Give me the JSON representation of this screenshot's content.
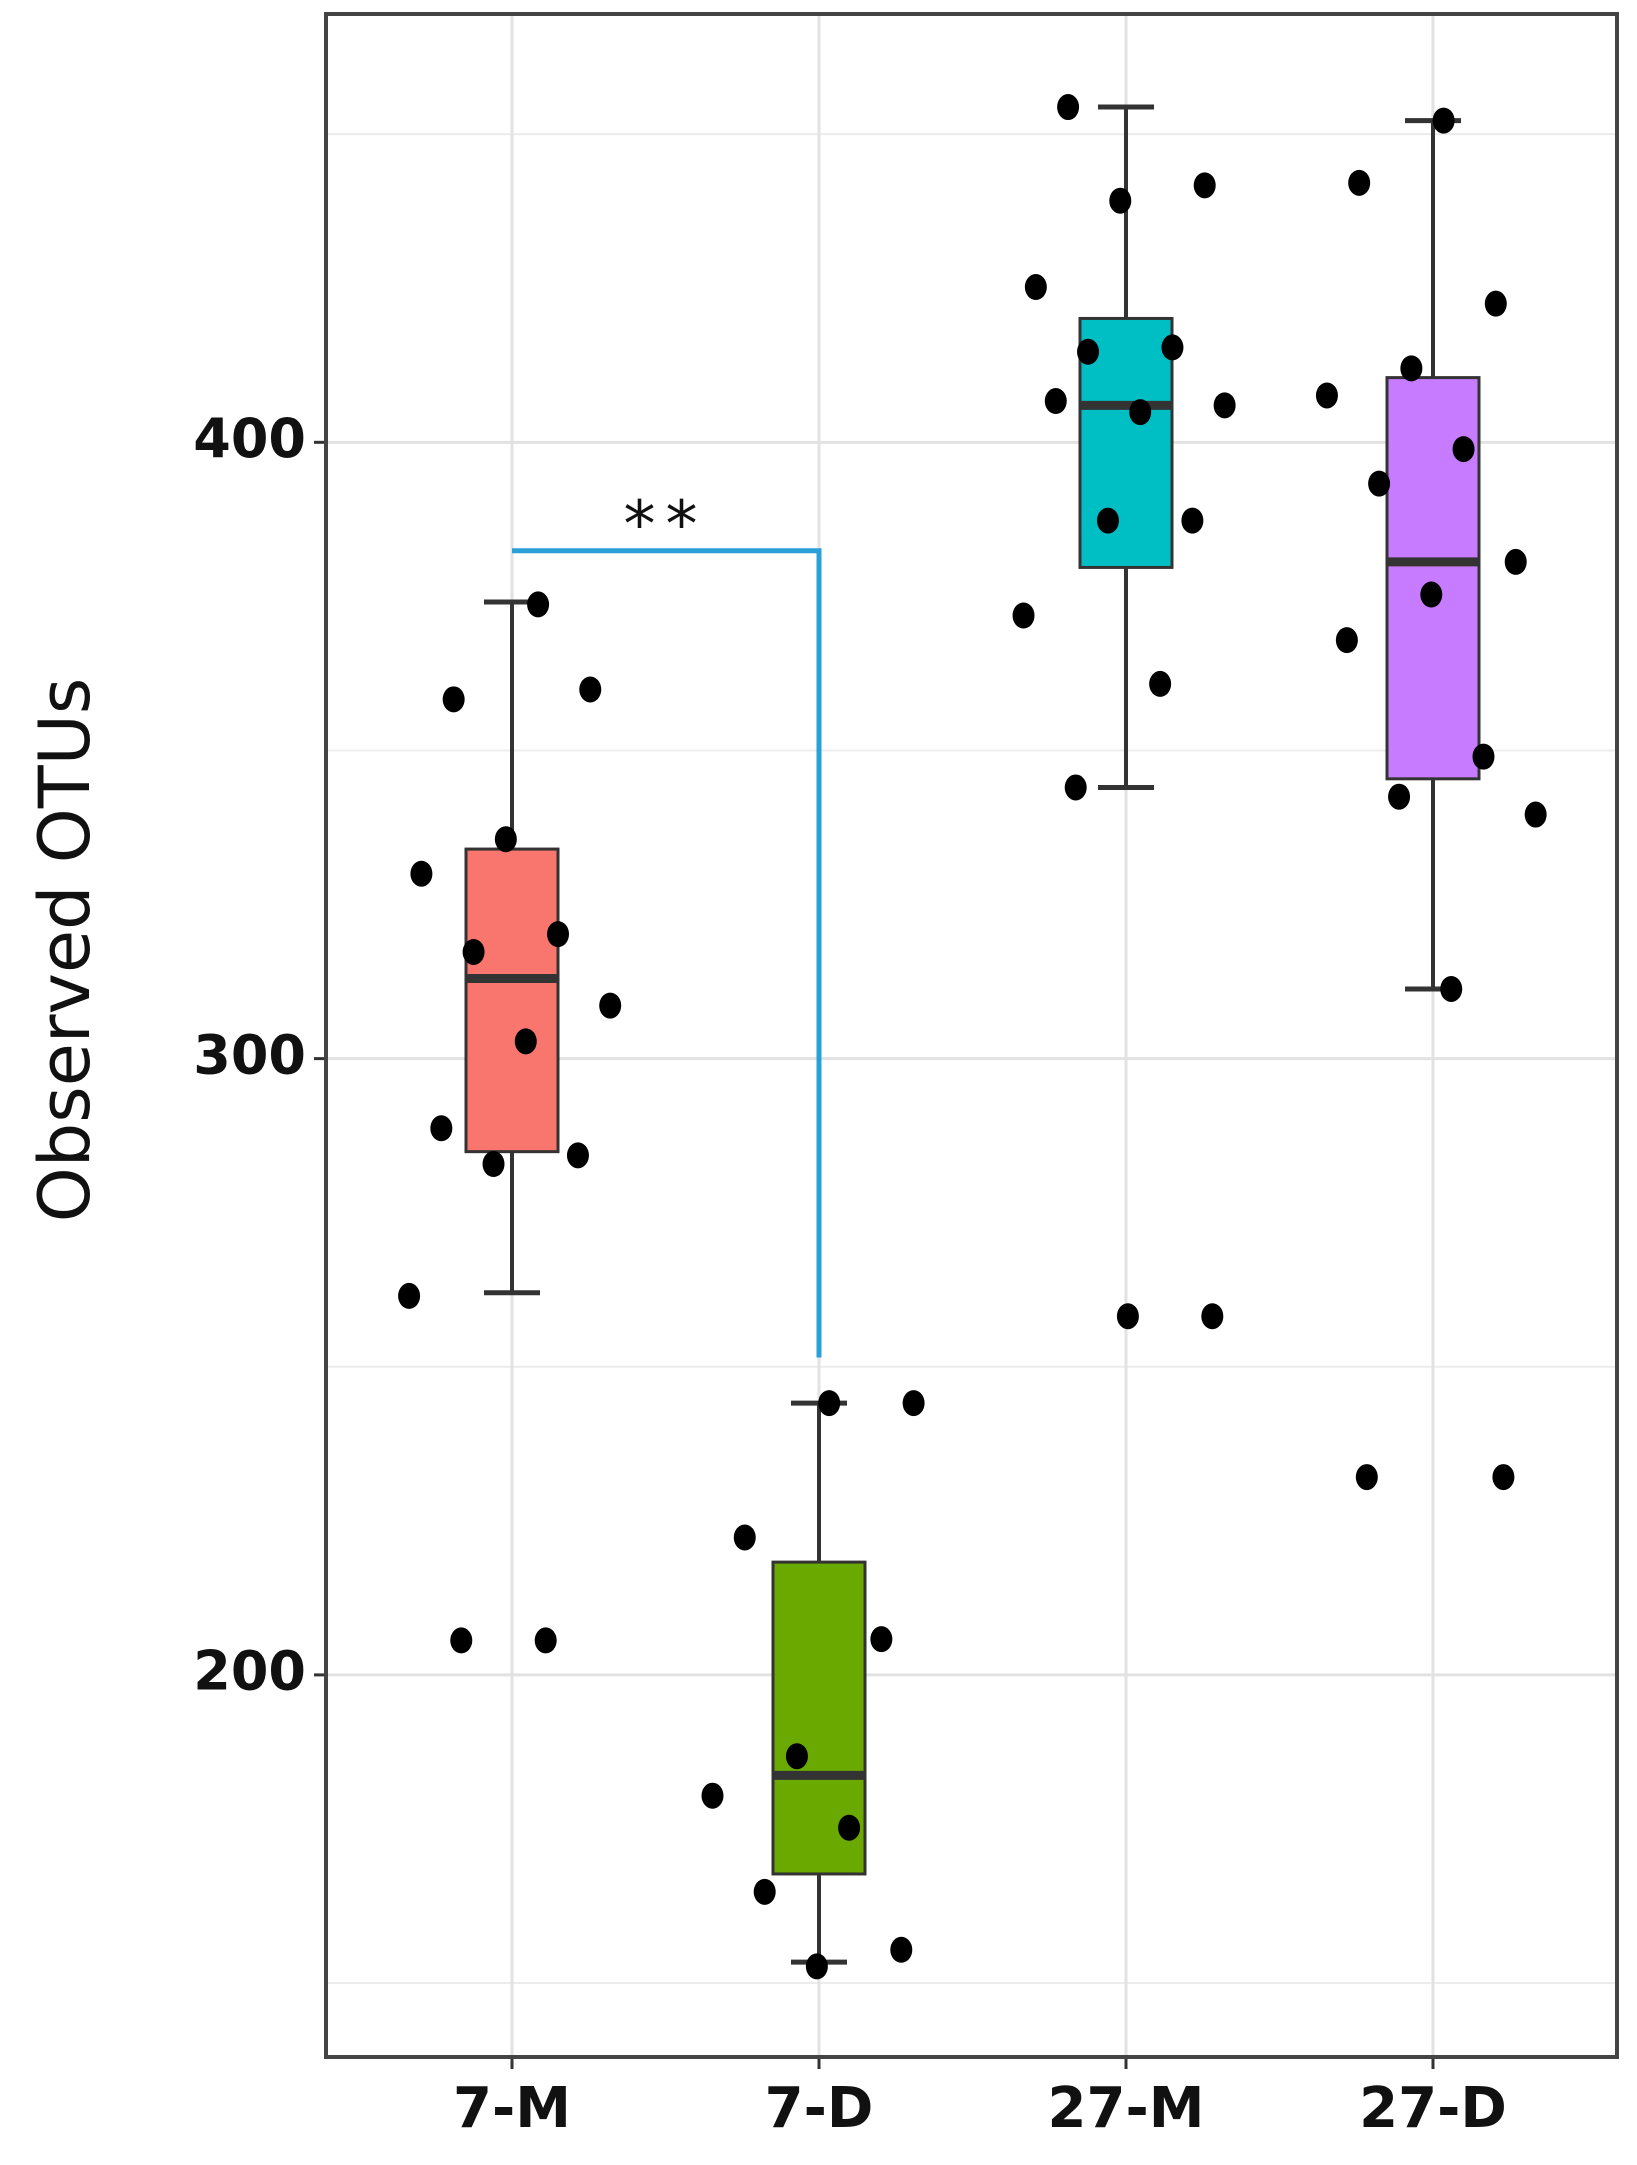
{
  "chart_data": {
    "type": "box",
    "y_label": "Observed OTUs",
    "categories": [
      "7-M",
      "7-D",
      "27-M",
      "27-D"
    ],
    "ylim": [
      138,
      469.5
    ],
    "yticks": [
      200,
      300,
      400
    ],
    "minor_yticks": [
      150,
      250,
      350,
      450
    ],
    "grid": true,
    "boxes": [
      {
        "color": "#f8766d",
        "whisker_low": 262.0,
        "q1": 284.9,
        "median": 313.0,
        "q3": 334.0,
        "whisker_high": 374.1,
        "points": [
          373.7,
          358.3,
          359.9,
          335.6,
          330.0,
          320.2,
          317.3,
          308.6,
          302.8,
          288.7,
          284.3,
          282.9,
          261.5,
          205.6,
          205.6
        ]
      },
      {
        "color": "#6aaa00",
        "whisker_low": 153.4,
        "q1": 167.7,
        "median": 183.7,
        "q3": 218.3,
        "whisker_high": 244.1,
        "points": [
          244.1,
          244.1,
          222.3,
          205.8,
          186.8,
          180.4,
          175.2,
          164.8,
          155.4,
          152.7
        ]
      },
      {
        "color": "#00bfc4",
        "whisker_low": 344.0,
        "q1": 379.7,
        "median": 406.0,
        "q3": 420.1,
        "whisker_high": 454.4,
        "points": [
          454.4,
          441.7,
          439.2,
          425.2,
          415.4,
          414.7,
          406.0,
          404.9,
          406.7,
          387.3,
          387.3,
          371.9,
          360.8,
          344.0,
          258.2,
          258.2
        ]
      },
      {
        "color": "#c77cff",
        "whisker_low": 311.3,
        "q1": 345.4,
        "median": 380.6,
        "q3": 410.5,
        "whisker_high": 452.2,
        "points": [
          452.2,
          442.1,
          422.5,
          412.0,
          407.6,
          398.9,
          393.3,
          380.6,
          375.3,
          367.9,
          349.0,
          342.5,
          339.6,
          311.3,
          232.1,
          232.1
        ]
      }
    ],
    "annotations": [
      {
        "text": "**",
        "from": 0,
        "to": 1,
        "y": 382.4,
        "y_end": 251.5,
        "color": "#2a9fd8"
      }
    ]
  }
}
